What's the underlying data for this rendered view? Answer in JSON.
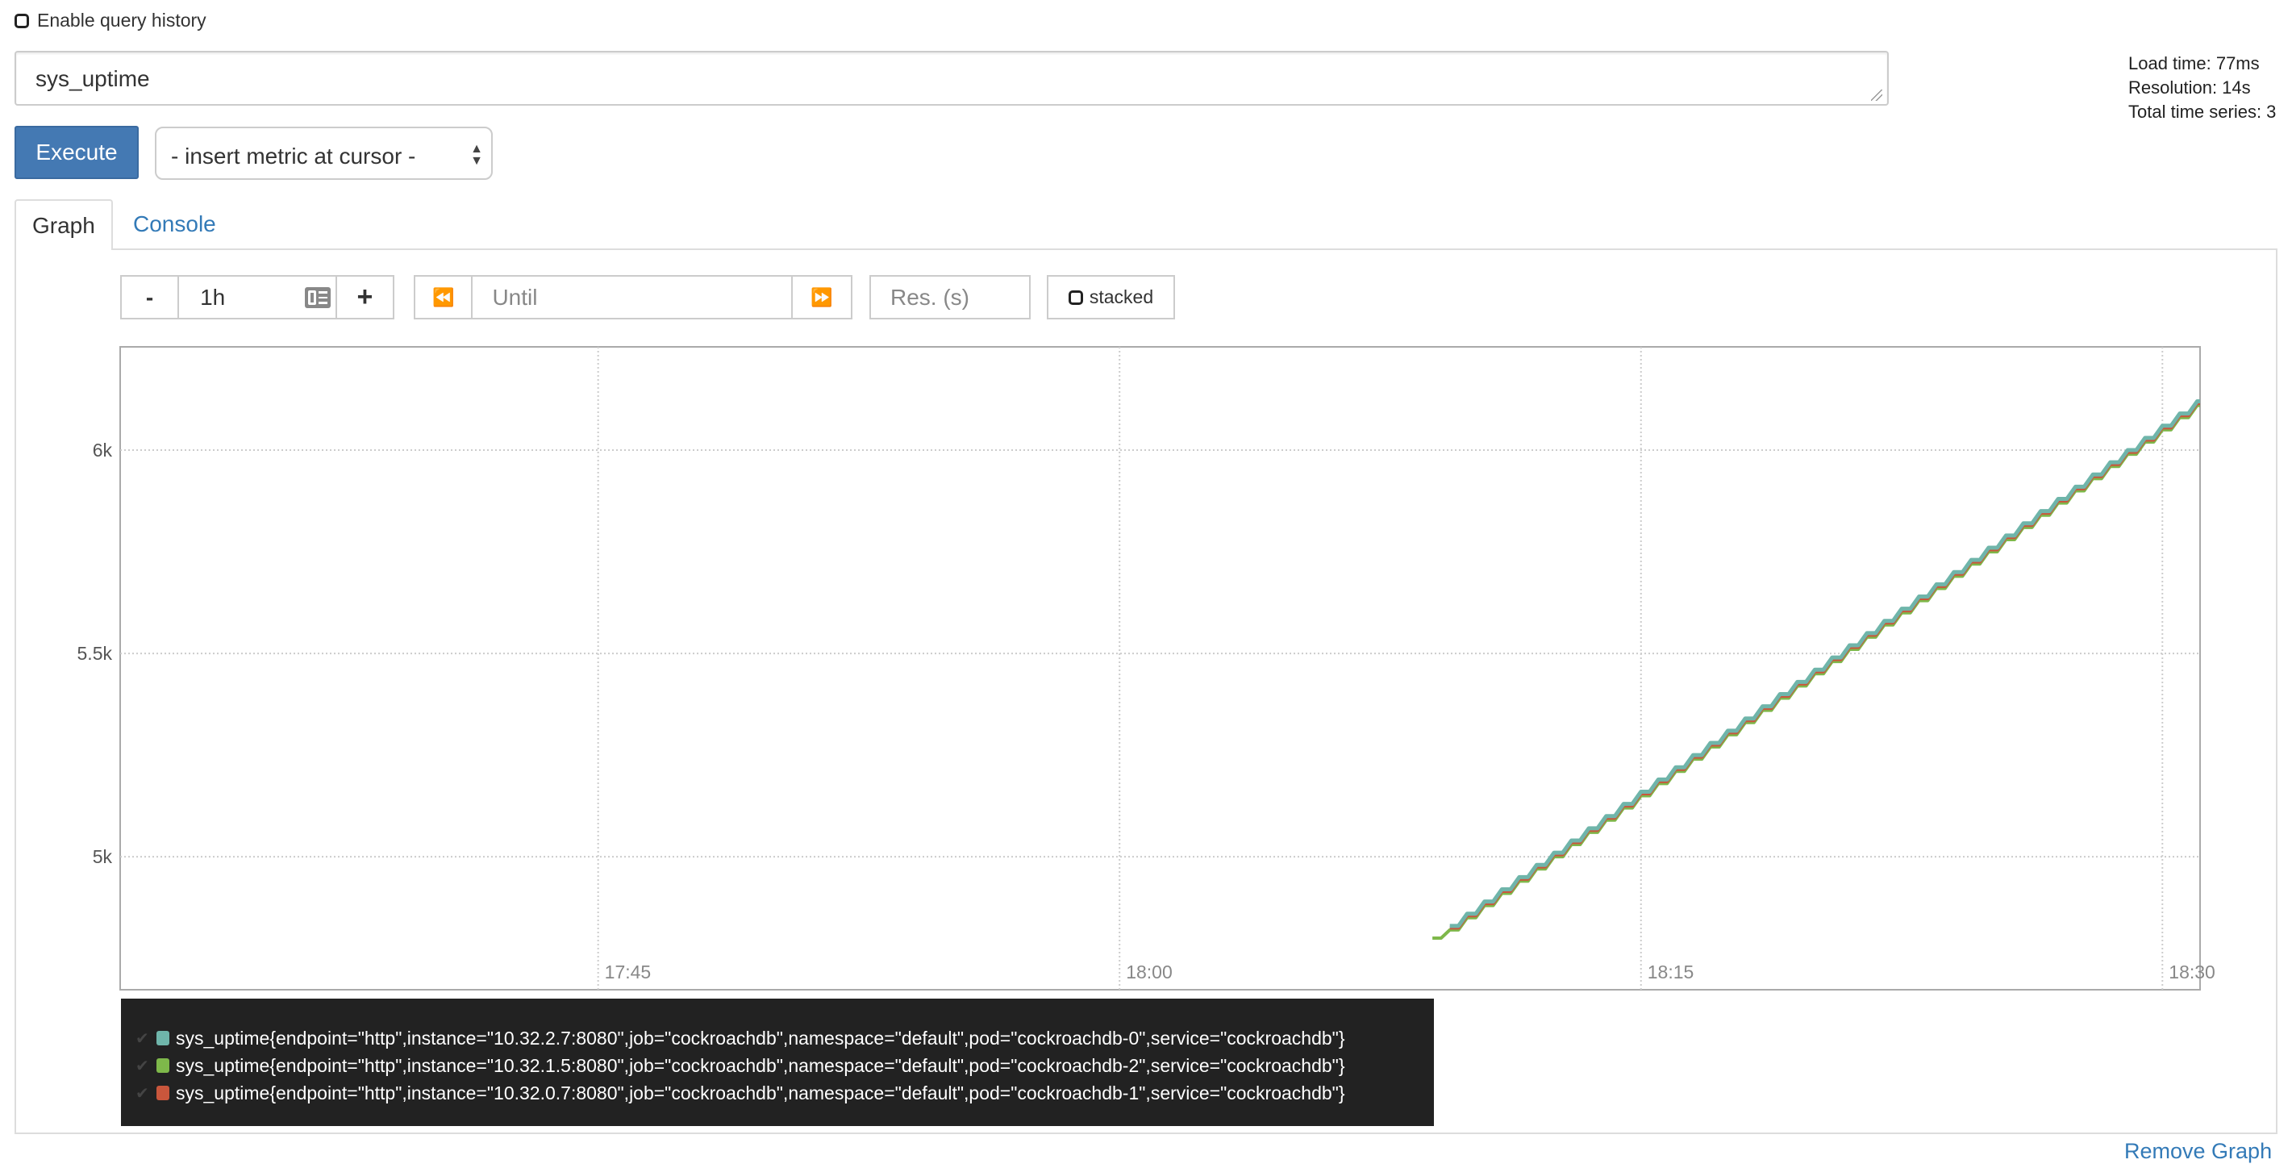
{
  "history": {
    "label": "Enable query history",
    "checked": false
  },
  "query": {
    "value": "sys_uptime"
  },
  "stats": {
    "load_time": "Load time: 77ms",
    "resolution": "Resolution: 14s",
    "total_series": "Total time series: 3"
  },
  "toolbar": {
    "execute_label": "Execute",
    "insert_metric_label": "- insert metric at cursor -"
  },
  "tabs": [
    {
      "label": "Graph",
      "active": true
    },
    {
      "label": "Console",
      "active": false
    }
  ],
  "graph_controls": {
    "minus": "-",
    "range": "1h",
    "plus": "+",
    "back": "⏪",
    "until_placeholder": "Until",
    "forward": "⏩",
    "res_placeholder": "Res. (s)",
    "stacked_label": "stacked",
    "stacked_checked": false
  },
  "chart_data": {
    "type": "line",
    "interpolation": "step",
    "xlim": [
      "17:31:15",
      "18:31:05"
    ],
    "ylim": [
      4673,
      6254
    ],
    "grid": true,
    "x_ticks": [
      "17:45",
      "18:00",
      "18:15",
      "18:30"
    ],
    "y_ticks": [
      {
        "value": 5000,
        "label": "5k"
      },
      {
        "value": 5500,
        "label": "5.5k"
      },
      {
        "value": 6000,
        "label": "6k"
      }
    ],
    "x": [
      "18:09:00",
      "18:09:30",
      "18:10:00",
      "18:10:30",
      "18:11:00",
      "18:11:30",
      "18:12:00",
      "18:12:30",
      "18:13:00",
      "18:13:30",
      "18:14:00",
      "18:14:30",
      "18:15:00",
      "18:15:30",
      "18:16:00",
      "18:16:30",
      "18:17:00",
      "18:17:30",
      "18:18:00",
      "18:18:30",
      "18:19:00",
      "18:19:30",
      "18:20:00",
      "18:20:30",
      "18:21:00",
      "18:21:30",
      "18:22:00",
      "18:22:30",
      "18:23:00",
      "18:23:30",
      "18:24:00",
      "18:24:30",
      "18:25:00",
      "18:25:30",
      "18:26:00",
      "18:26:30",
      "18:27:00",
      "18:27:30",
      "18:28:00",
      "18:28:30",
      "18:29:00",
      "18:29:30",
      "18:30:00",
      "18:30:30",
      "18:31:00"
    ],
    "series": [
      {
        "name": "sys_uptime{endpoint=\"http\",instance=\"10.32.2.7:8080\",job=\"cockroachdb\",namespace=\"default\",pod=\"cockroachdb-0\",service=\"cockroachdb\"}",
        "color": "#6fb5aa",
        "values": [
          null,
          4830,
          4860,
          4890,
          4920,
          4950,
          4980,
          5010,
          5040,
          5070,
          5100,
          5130,
          5160,
          5190,
          5220,
          5250,
          5280,
          5310,
          5340,
          5370,
          5400,
          5430,
          5460,
          5490,
          5520,
          5550,
          5580,
          5610,
          5640,
          5670,
          5700,
          5730,
          5760,
          5790,
          5820,
          5850,
          5880,
          5910,
          5940,
          5970,
          6000,
          6030,
          6060,
          6090,
          6120
        ]
      },
      {
        "name": "sys_uptime{endpoint=\"http\",instance=\"10.32.1.5:8080\",job=\"cockroachdb\",namespace=\"default\",pod=\"cockroachdb-2\",service=\"cockroachdb\"}",
        "color": "#7eb84a",
        "values": [
          4800,
          4820,
          4850,
          4880,
          4910,
          4940,
          4970,
          5000,
          5030,
          5060,
          5090,
          5120,
          5150,
          5180,
          5210,
          5240,
          5270,
          5300,
          5330,
          5360,
          5390,
          5420,
          5450,
          5480,
          5510,
          5540,
          5570,
          5600,
          5630,
          5660,
          5690,
          5720,
          5750,
          5780,
          5810,
          5840,
          5870,
          5900,
          5930,
          5960,
          5990,
          6020,
          6050,
          6080,
          6110
        ]
      },
      {
        "name": "sys_uptime{endpoint=\"http\",instance=\"10.32.0.7:8080\",job=\"cockroachdb\",namespace=\"default\",pod=\"cockroachdb-1\",service=\"cockroachdb\"}",
        "color": "#c9563c",
        "values": [
          null,
          4825,
          4855,
          4885,
          4915,
          4945,
          4975,
          5005,
          5035,
          5065,
          5095,
          5125,
          5155,
          5185,
          5215,
          5245,
          5275,
          5305,
          5335,
          5365,
          5395,
          5425,
          5455,
          5485,
          5515,
          5545,
          5575,
          5605,
          5635,
          5665,
          5695,
          5725,
          5755,
          5785,
          5815,
          5845,
          5875,
          5905,
          5935,
          5965,
          5995,
          6025,
          6055,
          6085,
          6115
        ]
      }
    ]
  },
  "remove_graph_label": "Remove Graph"
}
